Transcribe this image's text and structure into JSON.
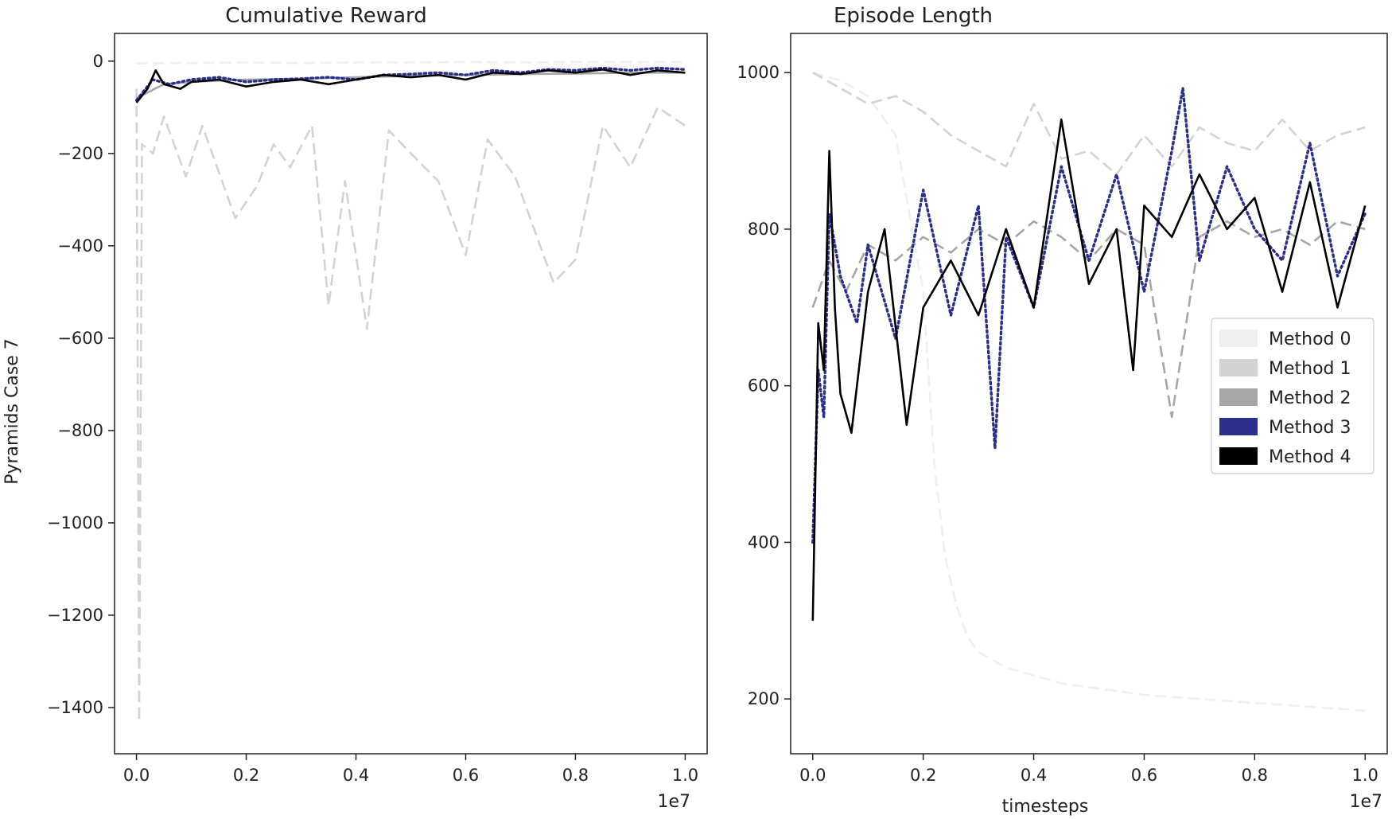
{
  "chart_data": [
    {
      "type": "line",
      "title": "Cumulative Reward",
      "xlabel": "",
      "ylabel": "Pyramids Case 7",
      "x_offset_label": "1e7",
      "xlim": [
        -0.04,
        1.04
      ],
      "ylim": [
        -1500,
        60
      ],
      "xticks": [
        0.0,
        0.2,
        0.4,
        0.6,
        0.8,
        1.0
      ],
      "xtick_labels": [
        "0.0",
        "0.2",
        "0.4",
        "0.6",
        "0.8",
        "1.0"
      ],
      "yticks": [
        0,
        -200,
        -400,
        -600,
        -800,
        -1000,
        -1200,
        -1400
      ],
      "ytick_labels": [
        "0",
        "−200",
        "−400",
        "−600",
        "−800",
        "−1000",
        "−1200",
        "−1400"
      ],
      "grid": false,
      "series": [
        {
          "name": "Method 0",
          "color": "#efefef",
          "style": "dashed",
          "x": [
            0.0,
            0.1,
            0.2,
            0.3,
            0.4,
            0.5,
            0.6,
            0.7,
            0.8,
            0.9,
            1.0
          ],
          "y": [
            -5,
            -4,
            -3,
            -4,
            -3,
            -3,
            -2,
            -3,
            -2,
            -2,
            -2
          ]
        },
        {
          "name": "Method 1",
          "color": "#d3d3d3",
          "style": "dashed",
          "x": [
            0.0,
            0.005,
            0.01,
            0.03,
            0.05,
            0.09,
            0.12,
            0.18,
            0.22,
            0.25,
            0.28,
            0.32,
            0.35,
            0.38,
            0.42,
            0.46,
            0.5,
            0.55,
            0.6,
            0.64,
            0.69,
            0.76,
            0.8,
            0.85,
            0.9,
            0.95,
            1.0
          ],
          "y": [
            -60,
            -1430,
            -180,
            -200,
            -120,
            -250,
            -140,
            -340,
            -270,
            -180,
            -230,
            -140,
            -530,
            -260,
            -580,
            -150,
            -200,
            -260,
            -420,
            -170,
            -250,
            -480,
            -430,
            -140,
            -230,
            -100,
            -140
          ]
        },
        {
          "name": "Method 2",
          "color": "#a6a6a6",
          "style": "solid",
          "x": [
            0.0,
            0.05,
            0.1,
            0.2,
            0.3,
            0.4,
            0.5,
            0.6,
            0.7,
            0.8,
            0.9,
            1.0
          ],
          "y": [
            -80,
            -50,
            -45,
            -40,
            -38,
            -35,
            -32,
            -30,
            -28,
            -27,
            -25,
            -25
          ]
        },
        {
          "name": "Method 3",
          "color": "#2b2f8a",
          "style": "dotted",
          "x": [
            0.0,
            0.03,
            0.06,
            0.1,
            0.15,
            0.2,
            0.25,
            0.3,
            0.35,
            0.4,
            0.45,
            0.5,
            0.55,
            0.6,
            0.65,
            0.7,
            0.75,
            0.8,
            0.85,
            0.9,
            0.95,
            1.0
          ],
          "y": [
            -85,
            -40,
            -50,
            -40,
            -35,
            -45,
            -40,
            -38,
            -35,
            -40,
            -30,
            -28,
            -25,
            -30,
            -20,
            -25,
            -18,
            -20,
            -15,
            -20,
            -15,
            -18
          ]
        },
        {
          "name": "Method 4",
          "color": "#000000",
          "style": "solid",
          "x": [
            0.0,
            0.02,
            0.035,
            0.05,
            0.08,
            0.1,
            0.15,
            0.2,
            0.25,
            0.3,
            0.35,
            0.4,
            0.45,
            0.5,
            0.55,
            0.6,
            0.65,
            0.7,
            0.75,
            0.8,
            0.85,
            0.9,
            0.95,
            1.0
          ],
          "y": [
            -90,
            -60,
            -20,
            -50,
            -60,
            -45,
            -40,
            -55,
            -45,
            -40,
            -50,
            -40,
            -30,
            -35,
            -30,
            -40,
            -25,
            -28,
            -20,
            -25,
            -18,
            -30,
            -20,
            -25
          ]
        }
      ]
    },
    {
      "type": "line",
      "title": "Episode Length",
      "xlabel": "timesteps",
      "ylabel": "",
      "x_offset_label": "1e7",
      "xlim": [
        -0.04,
        1.04
      ],
      "ylim": [
        130,
        1050
      ],
      "xticks": [
        0.0,
        0.2,
        0.4,
        0.6,
        0.8,
        1.0
      ],
      "xtick_labels": [
        "0.0",
        "0.2",
        "0.4",
        "0.6",
        "0.8",
        "1.0"
      ],
      "yticks": [
        200,
        400,
        600,
        800,
        1000
      ],
      "ytick_labels": [
        "200",
        "400",
        "600",
        "800",
        "1000"
      ],
      "grid": false,
      "legend": "center-right",
      "series": [
        {
          "name": "Method 0",
          "color": "#efefef",
          "style": "dashed",
          "x": [
            0.0,
            0.05,
            0.1,
            0.15,
            0.2,
            0.22,
            0.24,
            0.26,
            0.28,
            0.3,
            0.35,
            0.4,
            0.45,
            0.5,
            0.6,
            0.7,
            0.8,
            0.9,
            1.0
          ],
          "y": [
            1000,
            990,
            970,
            920,
            720,
            500,
            380,
            320,
            280,
            260,
            240,
            230,
            220,
            215,
            205,
            200,
            195,
            190,
            185
          ]
        },
        {
          "name": "Method 1",
          "color": "#d3d3d3",
          "style": "dashed",
          "x": [
            0.0,
            0.05,
            0.1,
            0.15,
            0.2,
            0.25,
            0.3,
            0.35,
            0.4,
            0.45,
            0.5,
            0.55,
            0.6,
            0.65,
            0.7,
            0.75,
            0.8,
            0.85,
            0.9,
            0.95,
            1.0
          ],
          "y": [
            1000,
            980,
            960,
            970,
            950,
            920,
            900,
            880,
            960,
            890,
            900,
            870,
            920,
            880,
            930,
            910,
            900,
            940,
            900,
            920,
            930
          ]
        },
        {
          "name": "Method 2",
          "color": "#a6a6a6",
          "style": "dashed",
          "x": [
            0.0,
            0.03,
            0.06,
            0.1,
            0.15,
            0.2,
            0.25,
            0.3,
            0.35,
            0.4,
            0.45,
            0.5,
            0.55,
            0.6,
            0.65,
            0.7,
            0.75,
            0.8,
            0.85,
            0.9,
            0.95,
            1.0
          ],
          "y": [
            700,
            760,
            720,
            780,
            760,
            790,
            770,
            800,
            780,
            810,
            790,
            760,
            800,
            780,
            560,
            790,
            810,
            790,
            800,
            780,
            810,
            800
          ]
        },
        {
          "name": "Method 3",
          "color": "#2b2f8a",
          "style": "dotted",
          "x": [
            0.0,
            0.01,
            0.02,
            0.03,
            0.05,
            0.08,
            0.1,
            0.15,
            0.2,
            0.25,
            0.3,
            0.33,
            0.35,
            0.4,
            0.45,
            0.5,
            0.55,
            0.6,
            0.65,
            0.67,
            0.7,
            0.75,
            0.8,
            0.85,
            0.9,
            0.95,
            1.0
          ],
          "y": [
            400,
            620,
            560,
            820,
            740,
            680,
            780,
            660,
            850,
            690,
            830,
            520,
            790,
            700,
            880,
            760,
            870,
            720,
            900,
            980,
            760,
            880,
            800,
            760,
            910,
            740,
            820
          ]
        },
        {
          "name": "Method 4",
          "color": "#000000",
          "style": "solid",
          "x": [
            0.0,
            0.01,
            0.02,
            0.03,
            0.04,
            0.05,
            0.07,
            0.1,
            0.13,
            0.17,
            0.2,
            0.25,
            0.3,
            0.35,
            0.4,
            0.45,
            0.5,
            0.55,
            0.58,
            0.6,
            0.65,
            0.7,
            0.75,
            0.8,
            0.85,
            0.9,
            0.95,
            1.0
          ],
          "y": [
            300,
            680,
            620,
            900,
            700,
            590,
            540,
            720,
            800,
            550,
            700,
            760,
            690,
            800,
            700,
            940,
            730,
            800,
            620,
            830,
            790,
            870,
            800,
            840,
            720,
            860,
            700,
            830
          ]
        }
      ]
    }
  ]
}
